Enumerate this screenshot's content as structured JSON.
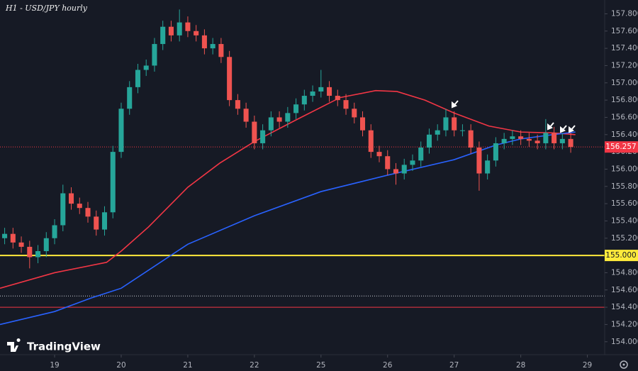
{
  "chart_data": {
    "type": "candlestick",
    "title": "H1 - USD/JPY hourly",
    "logo": "TradingView",
    "x": [
      0.25,
      0.375,
      0.5,
      0.625,
      0.75,
      0.875,
      1.0,
      1.125,
      1.25,
      1.375,
      1.5,
      1.625,
      1.75,
      1.875,
      2.0,
      2.125,
      2.25,
      2.375,
      2.5,
      2.625,
      2.75,
      2.875,
      3.0,
      3.125,
      3.25,
      3.375,
      3.5,
      3.625,
      3.75,
      3.875,
      4.0,
      4.125,
      4.25,
      4.375,
      4.5,
      4.625,
      4.75,
      4.875,
      5.0,
      5.125,
      5.25,
      5.375,
      5.5,
      5.625,
      5.75,
      5.875,
      6.0,
      6.125,
      6.25,
      6.375,
      6.5,
      6.625,
      6.75,
      6.875,
      7.0,
      7.125,
      7.25,
      7.375,
      7.5,
      7.625,
      7.75,
      7.875,
      8.0,
      8.125,
      8.25,
      8.375,
      8.5,
      8.625,
      8.75
    ],
    "open": [
      155.2,
      155.25,
      155.15,
      155.1,
      154.98,
      155.05,
      155.2,
      155.35,
      155.72,
      155.6,
      155.55,
      155.45,
      155.3,
      155.5,
      156.2,
      156.7,
      156.95,
      157.15,
      157.2,
      157.45,
      157.65,
      157.55,
      157.7,
      157.6,
      157.55,
      157.4,
      157.45,
      157.3,
      156.8,
      156.7,
      156.55,
      156.3,
      156.45,
      156.6,
      156.55,
      156.65,
      156.75,
      156.85,
      156.9,
      156.95,
      156.85,
      156.8,
      156.7,
      156.6,
      156.45,
      156.2,
      156.15,
      156.0,
      155.95,
      156.05,
      156.1,
      156.25,
      156.4,
      156.45,
      156.6,
      156.45,
      156.45,
      156.25,
      155.95,
      156.1,
      156.3,
      156.35,
      156.38,
      156.35,
      156.33,
      156.3,
      156.42,
      156.3,
      156.35
    ],
    "high": [
      155.32,
      155.32,
      155.22,
      155.17,
      155.12,
      155.27,
      155.42,
      155.82,
      155.79,
      155.67,
      155.62,
      155.52,
      155.57,
      156.27,
      156.77,
      157.02,
      157.22,
      157.27,
      157.52,
      157.72,
      157.72,
      157.85,
      157.77,
      157.67,
      157.62,
      157.52,
      157.52,
      157.37,
      156.87,
      156.77,
      156.62,
      156.52,
      156.67,
      156.67,
      156.72,
      156.82,
      156.92,
      156.97,
      157.15,
      157.02,
      156.92,
      156.87,
      156.77,
      156.67,
      156.52,
      156.27,
      156.22,
      156.07,
      156.12,
      156.17,
      156.32,
      156.47,
      156.52,
      156.7,
      156.67,
      156.52,
      156.52,
      156.32,
      156.17,
      156.37,
      156.42,
      156.45,
      156.45,
      156.42,
      156.4,
      156.58,
      156.49,
      156.42,
      156.42
    ],
    "low": [
      155.13,
      155.08,
      155.03,
      154.85,
      154.91,
      154.98,
      155.13,
      155.28,
      155.53,
      155.48,
      155.38,
      155.23,
      155.23,
      155.43,
      156.13,
      156.63,
      156.88,
      157.08,
      157.13,
      157.38,
      157.48,
      157.48,
      157.53,
      157.48,
      157.33,
      157.33,
      157.23,
      156.73,
      156.63,
      156.48,
      156.23,
      156.23,
      156.38,
      156.48,
      156.48,
      156.58,
      156.68,
      156.78,
      156.83,
      156.78,
      156.73,
      156.63,
      156.53,
      156.38,
      156.13,
      156.08,
      155.93,
      155.82,
      155.88,
      155.98,
      156.03,
      156.18,
      156.33,
      156.38,
      156.38,
      156.38,
      156.18,
      155.75,
      155.88,
      156.03,
      156.23,
      156.28,
      156.28,
      156.26,
      156.23,
      156.23,
      156.23,
      156.23,
      156.19
    ],
    "close": [
      155.25,
      155.15,
      155.1,
      154.98,
      155.05,
      155.2,
      155.35,
      155.72,
      155.6,
      155.55,
      155.45,
      155.3,
      155.5,
      156.2,
      156.7,
      156.95,
      157.15,
      157.2,
      157.45,
      157.65,
      157.55,
      157.7,
      157.6,
      157.55,
      157.4,
      157.45,
      157.3,
      156.8,
      156.7,
      156.55,
      156.3,
      156.45,
      156.6,
      156.55,
      156.65,
      156.75,
      156.85,
      156.9,
      156.95,
      156.85,
      156.8,
      156.7,
      156.6,
      156.45,
      156.2,
      156.15,
      156.0,
      155.95,
      156.05,
      156.1,
      156.25,
      156.4,
      156.45,
      156.6,
      156.45,
      156.45,
      156.25,
      155.95,
      156.1,
      156.3,
      156.35,
      156.38,
      156.35,
      156.33,
      156.3,
      156.42,
      156.3,
      156.35,
      156.257
    ],
    "up_color": "#26a69a",
    "down_color": "#ef5350",
    "series": [
      {
        "color": "#f23645",
        "x": [
          0.18,
          1.0,
          1.78,
          2.0,
          2.41,
          3.0,
          3.48,
          4.0,
          4.65,
          5.29,
          5.82,
          6.14,
          6.56,
          7.0,
          7.52,
          8.0,
          8.48,
          8.82
        ],
        "values": [
          154.62,
          154.8,
          154.92,
          155.05,
          155.33,
          155.79,
          156.07,
          156.32,
          156.58,
          156.83,
          156.91,
          156.9,
          156.8,
          156.65,
          156.5,
          156.43,
          156.42,
          156.4
        ]
      },
      {
        "color": "#2962ff",
        "x": [
          0.18,
          1.0,
          1.56,
          2.0,
          3.0,
          4.0,
          5.0,
          6.0,
          7.0,
          7.63,
          8.0,
          8.48,
          8.82
        ],
        "values": [
          154.2,
          154.35,
          154.51,
          154.62,
          155.13,
          155.46,
          155.74,
          155.93,
          156.11,
          156.28,
          156.35,
          156.4,
          156.43
        ]
      }
    ],
    "levels": [
      {
        "value": 155.0,
        "label": "155.000",
        "color": "#ffeb3b",
        "style": "solid"
      },
      {
        "value": 154.53,
        "color": "#d1d4dc",
        "style": "dotted"
      },
      {
        "value": 154.4,
        "color": "#f23645",
        "style": "solid"
      },
      {
        "value": 156.257,
        "label": "156.257",
        "color": "#f23645",
        "style": "dotted"
      }
    ],
    "xlim": [
      0.18,
      9.26
    ],
    "xticks": [
      {
        "value": 1,
        "label": "19"
      },
      {
        "value": 2,
        "label": "20"
      },
      {
        "value": 3,
        "label": "21"
      },
      {
        "value": 4,
        "label": "22"
      },
      {
        "value": 5,
        "label": "25"
      },
      {
        "value": 6,
        "label": "26"
      },
      {
        "value": 7,
        "label": "27"
      },
      {
        "value": 8,
        "label": "28"
      },
      {
        "value": 9,
        "label": "29"
      }
    ],
    "ylim": [
      153.85,
      157.96
    ],
    "yticks": [
      {
        "value": 154.0,
        "label": "154.000"
      },
      {
        "value": 154.2,
        "label": "154.200"
      },
      {
        "value": 154.4,
        "label": "154.400"
      },
      {
        "value": 154.6,
        "label": "154.600"
      },
      {
        "value": 154.8,
        "label": "154.800"
      },
      {
        "value": 155.0,
        "label": "155.000"
      },
      {
        "value": 155.2,
        "label": "155.200"
      },
      {
        "value": 155.4,
        "label": "155.400"
      },
      {
        "value": 155.6,
        "label": "155.600"
      },
      {
        "value": 155.8,
        "label": "155.800"
      },
      {
        "value": 156.0,
        "label": "156.000"
      },
      {
        "value": 156.2,
        "label": "156.200"
      },
      {
        "value": 156.4,
        "label": "156.400"
      },
      {
        "value": 156.6,
        "label": "156.600"
      },
      {
        "value": 156.8,
        "label": "156.800"
      },
      {
        "value": 157.0,
        "label": "157.000"
      },
      {
        "value": 157.2,
        "label": "157.200"
      },
      {
        "value": 157.4,
        "label": "157.400"
      },
      {
        "value": 157.6,
        "label": "157.600"
      },
      {
        "value": 157.8,
        "label": "157.800"
      }
    ],
    "grid": false
  }
}
